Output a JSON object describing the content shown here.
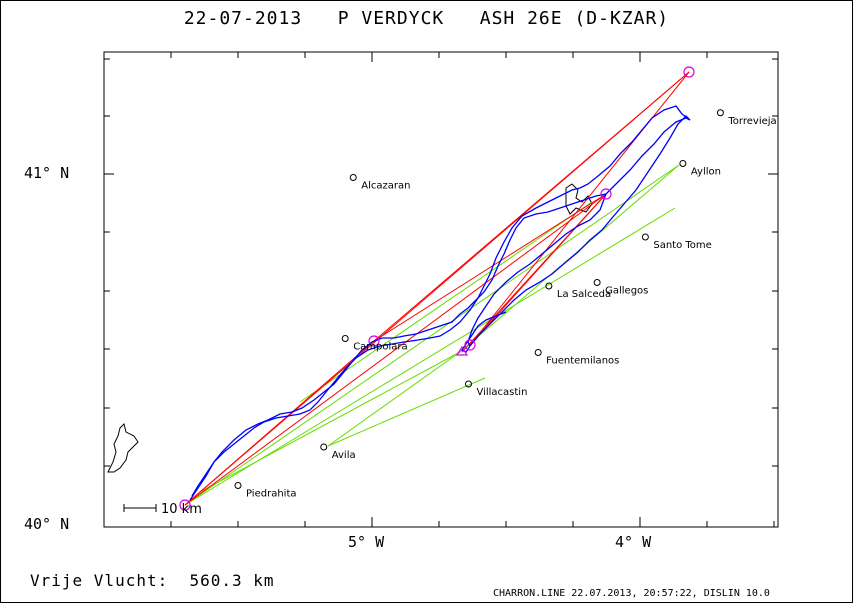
{
  "header": {
    "title": "22-07-2013   P VERDYCK   ASH 26E (D-KZAR)"
  },
  "axes": {
    "lat_labels": [
      {
        "text": "41° N",
        "lat": 41.0
      },
      {
        "text": "40° N",
        "lat": 40.0
      }
    ],
    "lon_labels": [
      {
        "text": "5° W",
        "lon": -5.0
      },
      {
        "text": "4° W",
        "lon": -4.0
      }
    ]
  },
  "map": {
    "lon_range": [
      -6.0,
      -3.5
    ],
    "lat_range": [
      40.0,
      41.35
    ],
    "colors": {
      "track": "#0000ff",
      "task": "#ff0000",
      "secondary": "#66dd00",
      "turnpoint": "#dd00dd",
      "border": "#000000"
    }
  },
  "towns": [
    {
      "name": "Torrevieja",
      "lon": -3.7,
      "lat": 41.175
    },
    {
      "name": "Alcazaran",
      "lon": -5.07,
      "lat": 40.99
    },
    {
      "name": "Ayllon",
      "lon": -3.84,
      "lat": 41.03
    },
    {
      "name": "Santo Tome",
      "lon": -3.98,
      "lat": 40.82
    },
    {
      "name": "Gallegos",
      "lon": -4.16,
      "lat": 40.69
    },
    {
      "name": "La Salceda",
      "lon": -4.34,
      "lat": 40.68
    },
    {
      "name": "Campolara",
      "lon": -5.1,
      "lat": 40.53
    },
    {
      "name": "Fuentemilanos",
      "lon": -4.38,
      "lat": 40.49
    },
    {
      "name": "Villacastin",
      "lon": -4.64,
      "lat": 40.4
    },
    {
      "name": "Avila",
      "lon": -5.18,
      "lat": 40.22
    },
    {
      "name": "Piedrahita",
      "lon": -5.5,
      "lat": 40.11
    }
  ],
  "scale": {
    "label": "10 km"
  },
  "footer": {
    "distance_label": "Vrije Vlucht:  560.3 km",
    "credit": "CHARRON.LINE 22.07.2013, 20:57:22, DISLIN 10.0"
  }
}
